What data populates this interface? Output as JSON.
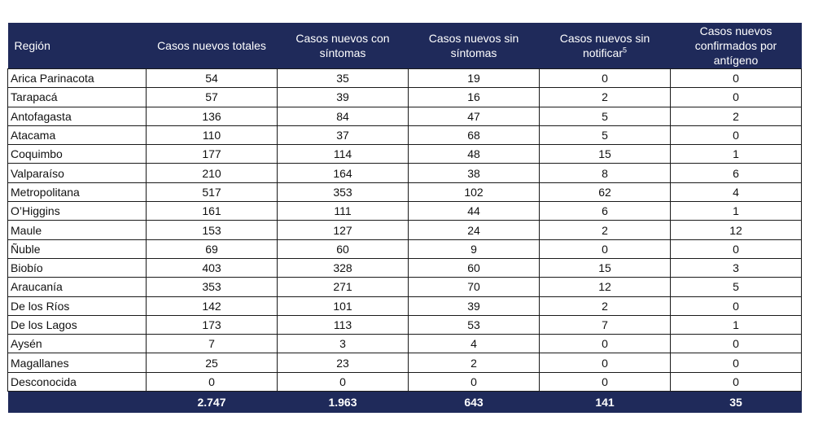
{
  "headers": [
    "Región",
    "Casos nuevos totales",
    "Casos nuevos con síntomas",
    "Casos nuevos sin síntomas",
    "Casos nuevos sin notificar",
    "Casos nuevos confirmados por antígeno"
  ],
  "header_footnote": "5",
  "rows": [
    [
      "Arica Parinacota",
      "54",
      "35",
      "19",
      "0",
      "0"
    ],
    [
      "Tarapacá",
      "57",
      "39",
      "16",
      "2",
      "0"
    ],
    [
      "Antofagasta",
      "136",
      "84",
      "47",
      "5",
      "2"
    ],
    [
      "Atacama",
      "110",
      "37",
      "68",
      "5",
      "0"
    ],
    [
      "Coquimbo",
      "177",
      "114",
      "48",
      "15",
      "1"
    ],
    [
      "Valparaíso",
      "210",
      "164",
      "38",
      "8",
      "6"
    ],
    [
      "Metropolitana",
      "517",
      "353",
      "102",
      "62",
      "4"
    ],
    [
      "O’Higgins",
      "161",
      "111",
      "44",
      "6",
      "1"
    ],
    [
      "Maule",
      "153",
      "127",
      "24",
      "2",
      "12"
    ],
    [
      "Ñuble",
      "69",
      "60",
      "9",
      "0",
      "0"
    ],
    [
      "Biobío",
      "403",
      "328",
      "60",
      "15",
      "3"
    ],
    [
      "Araucanía",
      "353",
      "271",
      "70",
      "12",
      "5"
    ],
    [
      "De los Ríos",
      "142",
      "101",
      "39",
      "2",
      "0"
    ],
    [
      "De los Lagos",
      "173",
      "113",
      "53",
      "7",
      "1"
    ],
    [
      "Aysén",
      "7",
      "3",
      "4",
      "0",
      "0"
    ],
    [
      "Magallanes",
      "25",
      "23",
      "2",
      "0",
      "0"
    ],
    [
      "Desconocida",
      "0",
      "0",
      "0",
      "0",
      "0"
    ]
  ],
  "totals": [
    "",
    "2.747",
    "1.963",
    "643",
    "141",
    "35"
  ]
}
